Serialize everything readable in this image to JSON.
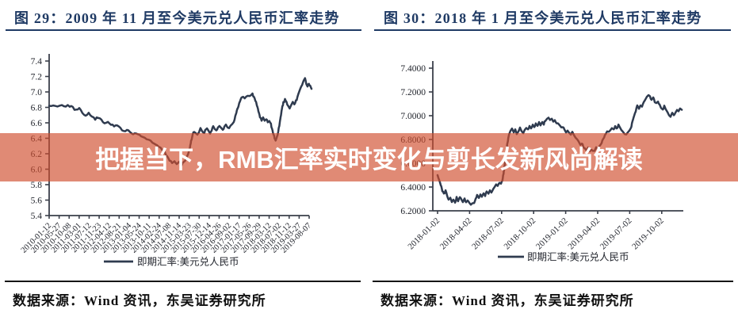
{
  "banner": {
    "text": "把握当下，RMB汇率实时变化与剪长发新风尚解读",
    "bg_color": "#D04E2D",
    "text_color": "#FFFFFF"
  },
  "panels": [
    {
      "title": "图 29：2009 年 11 月至今美元兑人民币汇率走势",
      "source": "数据来源：Wind 资讯，东吴证券研究所",
      "legend": "即期汇率:美元兑人民币"
    },
    {
      "title": "图 30：2018 年 1 月至今美元兑人民币汇率走势",
      "source": "数据来源：Wind 资讯，东吴证券研究所",
      "legend": "即期汇率:美元兑人民币"
    }
  ],
  "chart_data": [
    {
      "type": "line",
      "title": "图 29：2009 年 11 月至今美元兑人民币汇率走势",
      "legend": "即期汇率:美元兑人民币",
      "line_color": "#2F3B4F",
      "ylim": [
        5.4,
        7.4
      ],
      "yticks": [
        "7.4",
        "7.2",
        "7.0",
        "6.8",
        "6.6",
        "6.4",
        "6.2",
        "6.0",
        "5.8",
        "5.6",
        "5.4"
      ],
      "xticklabels": [
        "2010-01-12",
        "2010-05-27",
        "2010-10-08",
        "2011-03-01",
        "2011-07-12",
        "2011-11-23",
        "2012-04-12",
        "2012-08-21",
        "2013-01-04",
        "2013-05-24",
        "2013-10-11",
        "2014-02-24",
        "2014-07-08",
        "2014-11-14",
        "2015-03-23",
        "2015-07-30",
        "2015-12-14",
        "2016-04-26",
        "2016-09-02",
        "2017-01-17",
        "2017-05-26",
        "2017-09-29",
        "2018-03-12",
        "2018-07-02",
        "2018-11-12",
        "2019-03-27",
        "2019-08-07"
      ],
      "points": [
        [
          0.0,
          6.82
        ],
        [
          0.024,
          6.82
        ],
        [
          0.049,
          6.83
        ],
        [
          0.064,
          6.82
        ],
        [
          0.079,
          6.82
        ],
        [
          0.091,
          6.8
        ],
        [
          0.104,
          6.76
        ],
        [
          0.116,
          6.78
        ],
        [
          0.128,
          6.73
        ],
        [
          0.14,
          6.7
        ],
        [
          0.152,
          6.72
        ],
        [
          0.165,
          6.68
        ],
        [
          0.177,
          6.65
        ],
        [
          0.189,
          6.67
        ],
        [
          0.201,
          6.63
        ],
        [
          0.213,
          6.6
        ],
        [
          0.226,
          6.62
        ],
        [
          0.238,
          6.58
        ],
        [
          0.25,
          6.55
        ],
        [
          0.262,
          6.57
        ],
        [
          0.274,
          6.53
        ],
        [
          0.287,
          6.49
        ],
        [
          0.299,
          6.51
        ],
        [
          0.311,
          6.48
        ],
        [
          0.323,
          6.45
        ],
        [
          0.335,
          6.47
        ],
        [
          0.348,
          6.44
        ],
        [
          0.36,
          6.42
        ],
        [
          0.375,
          6.39
        ],
        [
          0.39,
          6.36
        ],
        [
          0.405,
          6.33
        ],
        [
          0.421,
          6.29
        ],
        [
          0.436,
          6.25
        ],
        [
          0.445,
          6.21
        ],
        [
          0.454,
          6.17
        ],
        [
          0.463,
          6.12
        ],
        [
          0.473,
          6.08
        ],
        [
          0.482,
          6.1
        ],
        [
          0.491,
          6.07
        ],
        [
          0.5,
          6.09
        ],
        [
          0.509,
          6.05
        ],
        [
          0.518,
          6.09
        ],
        [
          0.527,
          6.14
        ],
        [
          0.534,
          6.19
        ],
        [
          0.54,
          6.26
        ],
        [
          0.546,
          6.36
        ],
        [
          0.552,
          6.45
        ],
        [
          0.558,
          6.49
        ],
        [
          0.564,
          6.46
        ],
        [
          0.57,
          6.44
        ],
        [
          0.576,
          6.48
        ],
        [
          0.582,
          6.52
        ],
        [
          0.588,
          6.49
        ],
        [
          0.594,
          6.46
        ],
        [
          0.6,
          6.5
        ],
        [
          0.607,
          6.53
        ],
        [
          0.613,
          6.5
        ],
        [
          0.619,
          6.47
        ],
        [
          0.625,
          6.51
        ],
        [
          0.631,
          6.55
        ],
        [
          0.637,
          6.52
        ],
        [
          0.643,
          6.5
        ],
        [
          0.649,
          6.54
        ],
        [
          0.655,
          6.57
        ],
        [
          0.662,
          6.54
        ],
        [
          0.668,
          6.51
        ],
        [
          0.674,
          6.55
        ],
        [
          0.68,
          6.58
        ],
        [
          0.686,
          6.55
        ],
        [
          0.692,
          6.53
        ],
        [
          0.698,
          6.56
        ],
        [
          0.704,
          6.59
        ],
        [
          0.71,
          6.62
        ],
        [
          0.716,
          6.68
        ],
        [
          0.722,
          6.75
        ],
        [
          0.728,
          6.82
        ],
        [
          0.734,
          6.88
        ],
        [
          0.74,
          6.92
        ],
        [
          0.746,
          6.94
        ],
        [
          0.752,
          6.92
        ],
        [
          0.758,
          6.95
        ],
        [
          0.764,
          6.96
        ],
        [
          0.77,
          6.94
        ],
        [
          0.776,
          6.96
        ],
        [
          0.782,
          6.97
        ],
        [
          0.788,
          6.93
        ],
        [
          0.793,
          6.89
        ],
        [
          0.799,
          6.83
        ],
        [
          0.805,
          6.75
        ],
        [
          0.811,
          6.68
        ],
        [
          0.817,
          6.64
        ],
        [
          0.823,
          6.66
        ],
        [
          0.829,
          6.63
        ],
        [
          0.835,
          6.65
        ],
        [
          0.841,
          6.61
        ],
        [
          0.847,
          6.63
        ],
        [
          0.853,
          6.58
        ],
        [
          0.859,
          6.5
        ],
        [
          0.865,
          6.43
        ],
        [
          0.871,
          6.36
        ],
        [
          0.877,
          6.42
        ],
        [
          0.883,
          6.52
        ],
        [
          0.889,
          6.64
        ],
        [
          0.895,
          6.78
        ],
        [
          0.901,
          6.86
        ],
        [
          0.907,
          6.9
        ],
        [
          0.913,
          6.86
        ],
        [
          0.919,
          6.82
        ],
        [
          0.925,
          6.79
        ],
        [
          0.931,
          6.82
        ],
        [
          0.937,
          6.86
        ],
        [
          0.943,
          6.83
        ],
        [
          0.949,
          6.88
        ],
        [
          0.955,
          6.93
        ],
        [
          0.961,
          6.99
        ],
        [
          0.967,
          7.05
        ],
        [
          0.973,
          7.1
        ],
        [
          0.979,
          7.15
        ],
        [
          0.984,
          7.17
        ],
        [
          0.989,
          7.11
        ],
        [
          0.994,
          7.07
        ],
        [
          0.999,
          7.11
        ],
        [
          1.004,
          7.07
        ],
        [
          1.009,
          7.04
        ]
      ]
    },
    {
      "type": "line",
      "title": "图 30：2018 年 1 月至今美元兑人民币汇率走势",
      "legend": "即期汇率:美元兑人民币",
      "line_color": "#2F3B4F",
      "ylim": [
        6.2,
        7.4
      ],
      "yticks": [
        "7.4000",
        "7.2000",
        "7.0000",
        "6.8000",
        "6.6000",
        "6.4000",
        "6.2000"
      ],
      "xticklabels": [
        "2018-01-02",
        "2018-04-02",
        "2018-07-02",
        "2018-10-02",
        "2019-01-02",
        "2019-04-02",
        "2019-07-02",
        "2019-10-02"
      ],
      "points": [
        [
          0.019,
          6.5
        ],
        [
          0.025,
          6.46
        ],
        [
          0.032,
          6.42
        ],
        [
          0.038,
          6.37
        ],
        [
          0.044,
          6.34
        ],
        [
          0.051,
          6.37
        ],
        [
          0.057,
          6.33
        ],
        [
          0.063,
          6.29
        ],
        [
          0.07,
          6.31
        ],
        [
          0.076,
          6.27
        ],
        [
          0.082,
          6.3
        ],
        [
          0.089,
          6.27
        ],
        [
          0.095,
          6.31
        ],
        [
          0.101,
          6.28
        ],
        [
          0.108,
          6.32
        ],
        [
          0.114,
          6.29
        ],
        [
          0.12,
          6.27
        ],
        [
          0.127,
          6.3
        ],
        [
          0.133,
          6.27
        ],
        [
          0.139,
          6.29
        ],
        [
          0.146,
          6.26
        ],
        [
          0.152,
          6.25
        ],
        [
          0.158,
          6.27
        ],
        [
          0.165,
          6.26
        ],
        [
          0.171,
          6.3
        ],
        [
          0.177,
          6.33
        ],
        [
          0.184,
          6.31
        ],
        [
          0.19,
          6.34
        ],
        [
          0.196,
          6.32
        ],
        [
          0.203,
          6.35
        ],
        [
          0.209,
          6.33
        ],
        [
          0.215,
          6.36
        ],
        [
          0.222,
          6.34
        ],
        [
          0.228,
          6.37
        ],
        [
          0.234,
          6.35
        ],
        [
          0.241,
          6.38
        ],
        [
          0.247,
          6.4
        ],
        [
          0.253,
          6.42
        ],
        [
          0.259,
          6.41
        ],
        [
          0.266,
          6.44
        ],
        [
          0.272,
          6.43
        ],
        [
          0.278,
          6.46
        ],
        [
          0.285,
          6.55
        ],
        [
          0.291,
          6.66
        ],
        [
          0.297,
          6.76
        ],
        [
          0.304,
          6.84
        ],
        [
          0.31,
          6.87
        ],
        [
          0.316,
          6.89
        ],
        [
          0.323,
          6.86
        ],
        [
          0.329,
          6.88
        ],
        [
          0.335,
          6.85
        ],
        [
          0.342,
          6.87
        ],
        [
          0.348,
          6.9
        ],
        [
          0.354,
          6.87
        ],
        [
          0.361,
          6.85
        ],
        [
          0.367,
          6.88
        ],
        [
          0.373,
          6.9
        ],
        [
          0.38,
          6.88
        ],
        [
          0.386,
          6.91
        ],
        [
          0.392,
          6.89
        ],
        [
          0.399,
          6.92
        ],
        [
          0.405,
          6.9
        ],
        [
          0.411,
          6.93
        ],
        [
          0.418,
          6.91
        ],
        [
          0.424,
          6.94
        ],
        [
          0.43,
          6.92
        ],
        [
          0.437,
          6.95
        ],
        [
          0.443,
          6.93
        ],
        [
          0.449,
          6.96
        ],
        [
          0.456,
          6.97
        ],
        [
          0.462,
          6.98
        ],
        [
          0.468,
          6.96
        ],
        [
          0.475,
          6.97
        ],
        [
          0.481,
          6.95
        ],
        [
          0.487,
          6.96
        ],
        [
          0.494,
          6.93
        ],
        [
          0.5,
          6.94
        ],
        [
          0.506,
          6.92
        ],
        [
          0.513,
          6.9
        ],
        [
          0.519,
          6.91
        ],
        [
          0.525,
          6.88
        ],
        [
          0.532,
          6.86
        ],
        [
          0.538,
          6.88
        ],
        [
          0.544,
          6.86
        ],
        [
          0.551,
          6.84
        ],
        [
          0.557,
          6.86
        ],
        [
          0.563,
          6.84
        ],
        [
          0.57,
          6.82
        ],
        [
          0.576,
          6.8
        ],
        [
          0.582,
          6.78
        ],
        [
          0.589,
          6.76
        ],
        [
          0.595,
          6.77
        ],
        [
          0.601,
          6.74
        ],
        [
          0.608,
          6.72
        ],
        [
          0.614,
          6.71
        ],
        [
          0.62,
          6.73
        ],
        [
          0.627,
          6.7
        ],
        [
          0.633,
          6.72
        ],
        [
          0.639,
          6.7
        ],
        [
          0.646,
          6.71
        ],
        [
          0.652,
          6.73
        ],
        [
          0.658,
          6.72
        ],
        [
          0.665,
          6.74
        ],
        [
          0.671,
          6.76
        ],
        [
          0.677,
          6.79
        ],
        [
          0.684,
          6.82
        ],
        [
          0.69,
          6.85
        ],
        [
          0.696,
          6.87
        ],
        [
          0.703,
          6.86
        ],
        [
          0.709,
          6.88
        ],
        [
          0.715,
          6.9
        ],
        [
          0.722,
          6.88
        ],
        [
          0.728,
          6.91
        ],
        [
          0.734,
          6.89
        ],
        [
          0.741,
          6.92
        ],
        [
          0.747,
          6.9
        ],
        [
          0.753,
          6.88
        ],
        [
          0.759,
          6.86
        ],
        [
          0.766,
          6.85
        ],
        [
          0.772,
          6.84
        ],
        [
          0.778,
          6.86
        ],
        [
          0.785,
          6.88
        ],
        [
          0.791,
          6.9
        ],
        [
          0.797,
          6.95
        ],
        [
          0.804,
          7.0
        ],
        [
          0.81,
          7.04
        ],
        [
          0.816,
          7.08
        ],
        [
          0.823,
          7.06
        ],
        [
          0.829,
          7.09
        ],
        [
          0.835,
          7.08
        ],
        [
          0.842,
          7.11
        ],
        [
          0.848,
          7.14
        ],
        [
          0.854,
          7.16
        ],
        [
          0.861,
          7.18
        ],
        [
          0.867,
          7.16
        ],
        [
          0.873,
          7.13
        ],
        [
          0.88,
          7.15
        ],
        [
          0.886,
          7.12
        ],
        [
          0.892,
          7.1
        ],
        [
          0.899,
          7.12
        ],
        [
          0.905,
          7.09
        ],
        [
          0.911,
          7.07
        ],
        [
          0.918,
          7.05
        ],
        [
          0.924,
          7.08
        ],
        [
          0.93,
          7.06
        ],
        [
          0.937,
          7.03
        ],
        [
          0.943,
          7.01
        ],
        [
          0.949,
          6.99
        ],
        [
          0.956,
          7.02
        ],
        [
          0.962,
          7.0
        ],
        [
          0.968,
          7.03
        ],
        [
          0.975,
          7.05
        ],
        [
          0.981,
          7.04
        ],
        [
          0.987,
          7.06
        ],
        [
          0.994,
          7.05
        ]
      ]
    }
  ]
}
